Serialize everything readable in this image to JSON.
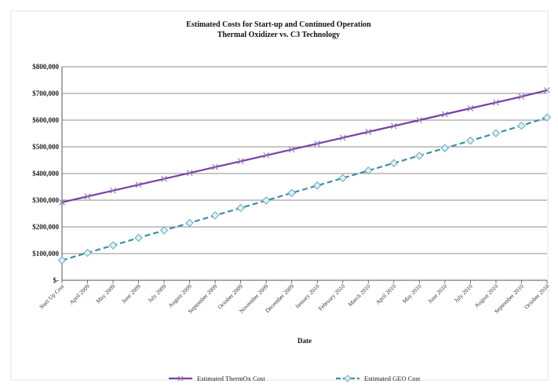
{
  "chart_data": {
    "type": "line",
    "title": "Estimated Costs for Start-up and Continued Operation",
    "subtitle": "Thermal Oxidizer vs. C3 Technology",
    "xlabel": "Date",
    "ylabel": "",
    "ylim": [
      0,
      800000
    ],
    "yticks": [
      0,
      100000,
      200000,
      300000,
      400000,
      500000,
      600000,
      700000,
      800000
    ],
    "ytick_labels": [
      "$-",
      "$100,000",
      "$200,000",
      "$300,000",
      "$400,000",
      "$500,000",
      "$600,000",
      "$700,000",
      "$800,000"
    ],
    "grid": true,
    "legend": "bottom",
    "categories": [
      "Start Up Cost",
      "April 2009",
      "May 2009",
      "June 2009",
      "July 2009",
      "August 2009",
      "September 2009",
      "October 2009",
      "November 2009",
      "December 2009",
      "January 2010",
      "February 2010",
      "March 2010",
      "April 2010",
      "May 2010",
      "June 2010",
      "July 2010",
      "August 2010",
      "September 2010",
      "October 2010"
    ],
    "series": [
      {
        "name": "Estimated ThermOx Cost",
        "color": "#7b3fa6",
        "marker": "x",
        "dash": "solid",
        "values": [
          292000,
          314000,
          336000,
          358000,
          380000,
          402000,
          424000,
          446000,
          468000,
          490000,
          512000,
          534000,
          556000,
          578000,
          600000,
          622000,
          644000,
          666000,
          688000,
          712000
        ]
      },
      {
        "name": "Estimated GEO Cost",
        "color": "#3f8fa3",
        "marker": "diamond",
        "dash": "dashed",
        "values": [
          75000,
          103000,
          131000,
          159000,
          187000,
          215000,
          243000,
          271000,
          299000,
          327000,
          355000,
          383000,
          411000,
          439000,
          467000,
          495000,
          523000,
          551000,
          579000,
          610000
        ]
      }
    ]
  }
}
